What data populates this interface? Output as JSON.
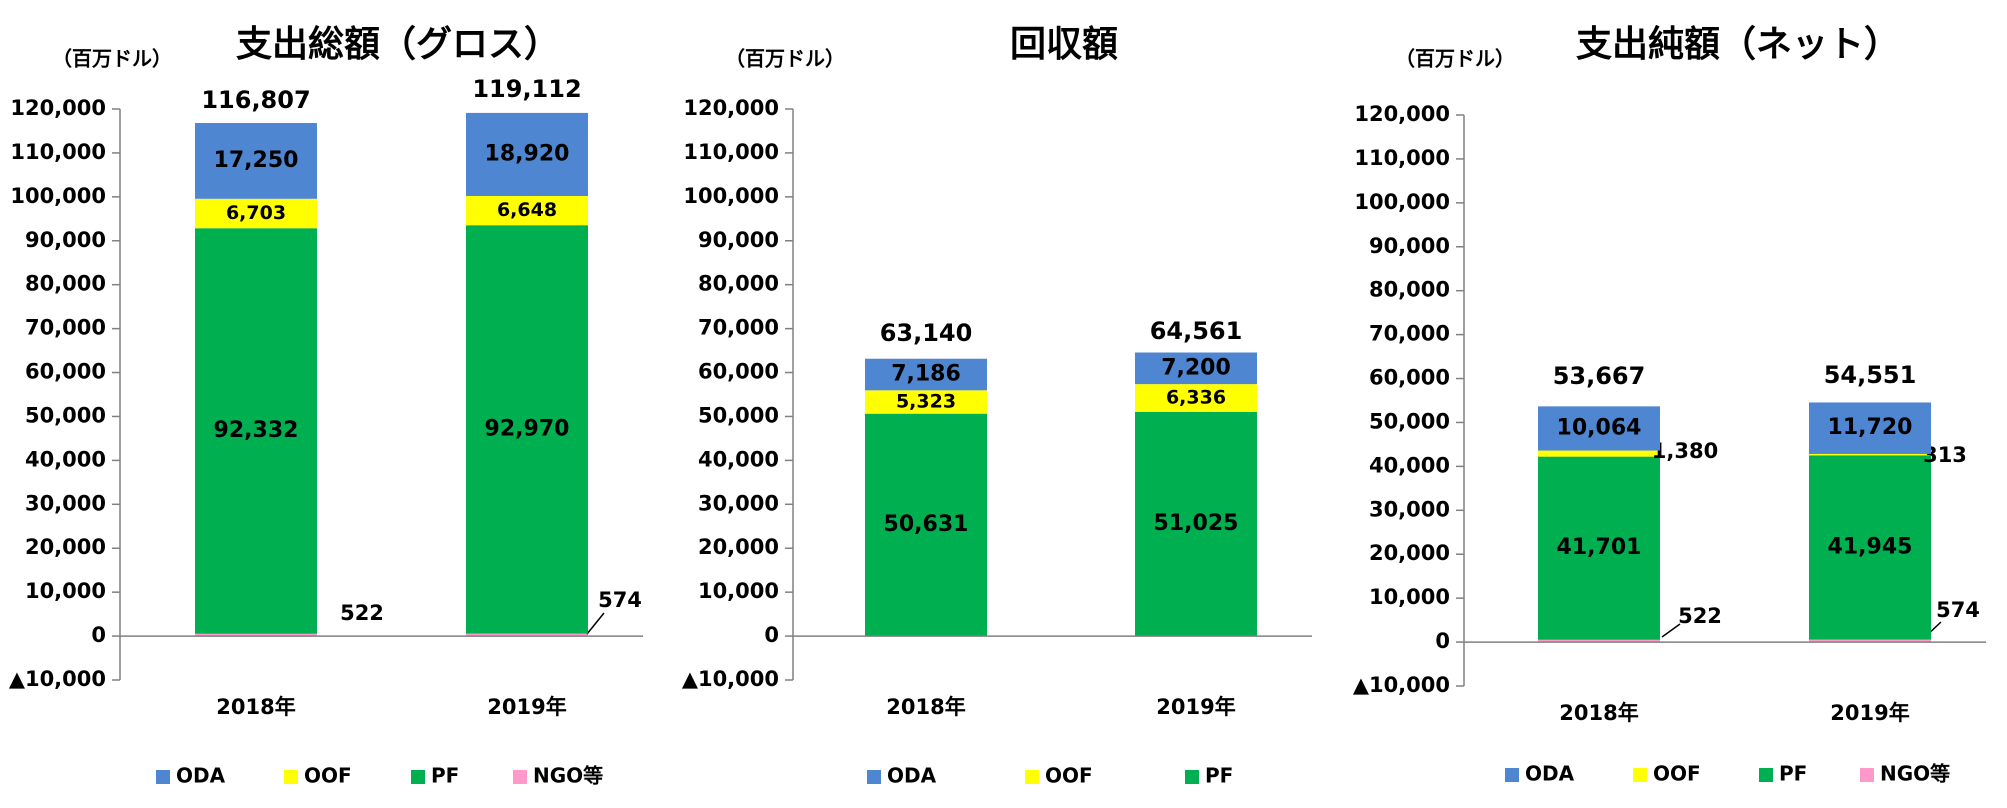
{
  "charts": [
    {
      "type": "bar",
      "stacked": true,
      "title": "支出総額（グロス）",
      "unit": "（百万ドル）",
      "categories": [
        "2018年",
        "2019年"
      ],
      "ylim": [
        -10000,
        120000
      ],
      "ticks": [
        -10000,
        0,
        10000,
        20000,
        30000,
        40000,
        50000,
        60000,
        70000,
        80000,
        90000,
        100000,
        110000,
        120000
      ],
      "tick_labels": [
        "▲10,000",
        "0",
        "10,000",
        "20,000",
        "30,000",
        "40,000",
        "50,000",
        "60,000",
        "70,000",
        "80,000",
        "90,000",
        "100,000",
        "110,000",
        "120,000"
      ],
      "series": [
        {
          "name": "NGO等",
          "values": [
            522,
            574
          ],
          "labels": [
            "522",
            "574"
          ]
        },
        {
          "name": "PF",
          "values": [
            92332,
            92970
          ],
          "labels": [
            "92,332",
            "92,970"
          ]
        },
        {
          "name": "OOF",
          "values": [
            6703,
            6648
          ],
          "labels": [
            "6,703",
            "6,648"
          ]
        },
        {
          "name": "ODA",
          "values": [
            17250,
            18920
          ],
          "labels": [
            "17,250",
            "18,920"
          ]
        }
      ],
      "totals": [
        "116,807",
        "119,112"
      ],
      "legend": [
        "ODA",
        "OOF",
        "PF",
        "NGO等"
      ]
    },
    {
      "type": "bar",
      "stacked": true,
      "title": "回収額",
      "unit": "（百万ドル）",
      "categories": [
        "2018年",
        "2019年"
      ],
      "ylim": [
        -10000,
        120000
      ],
      "ticks": [
        -10000,
        0,
        10000,
        20000,
        30000,
        40000,
        50000,
        60000,
        70000,
        80000,
        90000,
        100000,
        110000,
        120000
      ],
      "tick_labels": [
        "▲10,000",
        "0",
        "10,000",
        "20,000",
        "30,000",
        "40,000",
        "50,000",
        "60,000",
        "70,000",
        "80,000",
        "90,000",
        "100,000",
        "110,000",
        "120,000"
      ],
      "series": [
        {
          "name": "PF",
          "values": [
            50631,
            51025
          ],
          "labels": [
            "50,631",
            "51,025"
          ]
        },
        {
          "name": "OOF",
          "values": [
            5323,
            6336
          ],
          "labels": [
            "5,323",
            "6,336"
          ]
        },
        {
          "name": "ODA",
          "values": [
            7186,
            7200
          ],
          "labels": [
            "7,186",
            "7,200"
          ]
        }
      ],
      "totals": [
        "63,140",
        "64,561"
      ],
      "legend": [
        "ODA",
        "OOF",
        "PF"
      ]
    },
    {
      "type": "bar",
      "stacked": true,
      "title": "支出純額（ネット）",
      "unit": "（百万ドル）",
      "categories": [
        "2018年",
        "2019年"
      ],
      "ylim": [
        -10000,
        120000
      ],
      "ticks": [
        -10000,
        0,
        10000,
        20000,
        30000,
        40000,
        50000,
        60000,
        70000,
        80000,
        90000,
        100000,
        110000,
        120000
      ],
      "tick_labels": [
        "▲10,000",
        "0",
        "10,000",
        "20,000",
        "30,000",
        "40,000",
        "50,000",
        "60,000",
        "70,000",
        "80,000",
        "90,000",
        "100,000",
        "110,000",
        "120,000"
      ],
      "series": [
        {
          "name": "NGO等",
          "values": [
            522,
            574
          ],
          "labels": [
            "522",
            "574"
          ]
        },
        {
          "name": "PF",
          "values": [
            41701,
            41945
          ],
          "labels": [
            "41,701",
            "41,945"
          ]
        },
        {
          "name": "OOF",
          "values": [
            1380,
            313
          ],
          "labels": [
            "1,380",
            "313"
          ]
        },
        {
          "name": "ODA",
          "values": [
            10064,
            11720
          ],
          "labels": [
            "10,064",
            "11,720"
          ]
        }
      ],
      "totals": [
        "53,667",
        "54,551"
      ],
      "legend": [
        "ODA",
        "OOF",
        "PF",
        "NGO等"
      ]
    }
  ],
  "colors": {
    "ODA": "#4f86d2",
    "OOF": "#ffff00",
    "PF": "#00b050",
    "NGO等": "#ff99cc",
    "axis": "#808080"
  }
}
